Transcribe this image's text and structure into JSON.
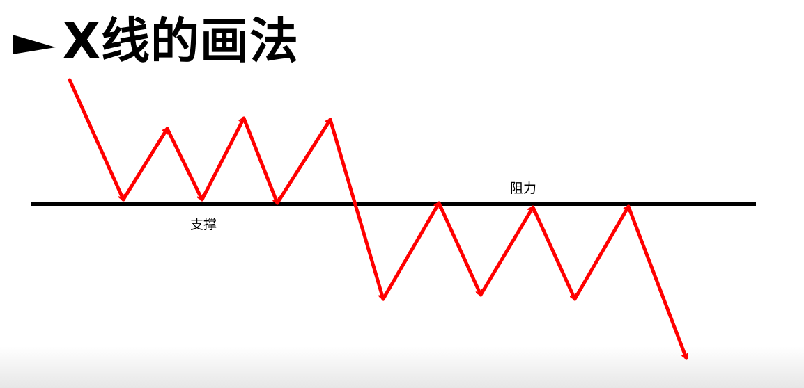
{
  "title": "X线的画法",
  "labels": {
    "support": "支撑",
    "resistance": "阻力"
  },
  "icons": {
    "title_bullet": "right-pointer-icon"
  },
  "colors": {
    "arrow": "#ff0000",
    "line": "#000000",
    "text": "#000000"
  }
}
